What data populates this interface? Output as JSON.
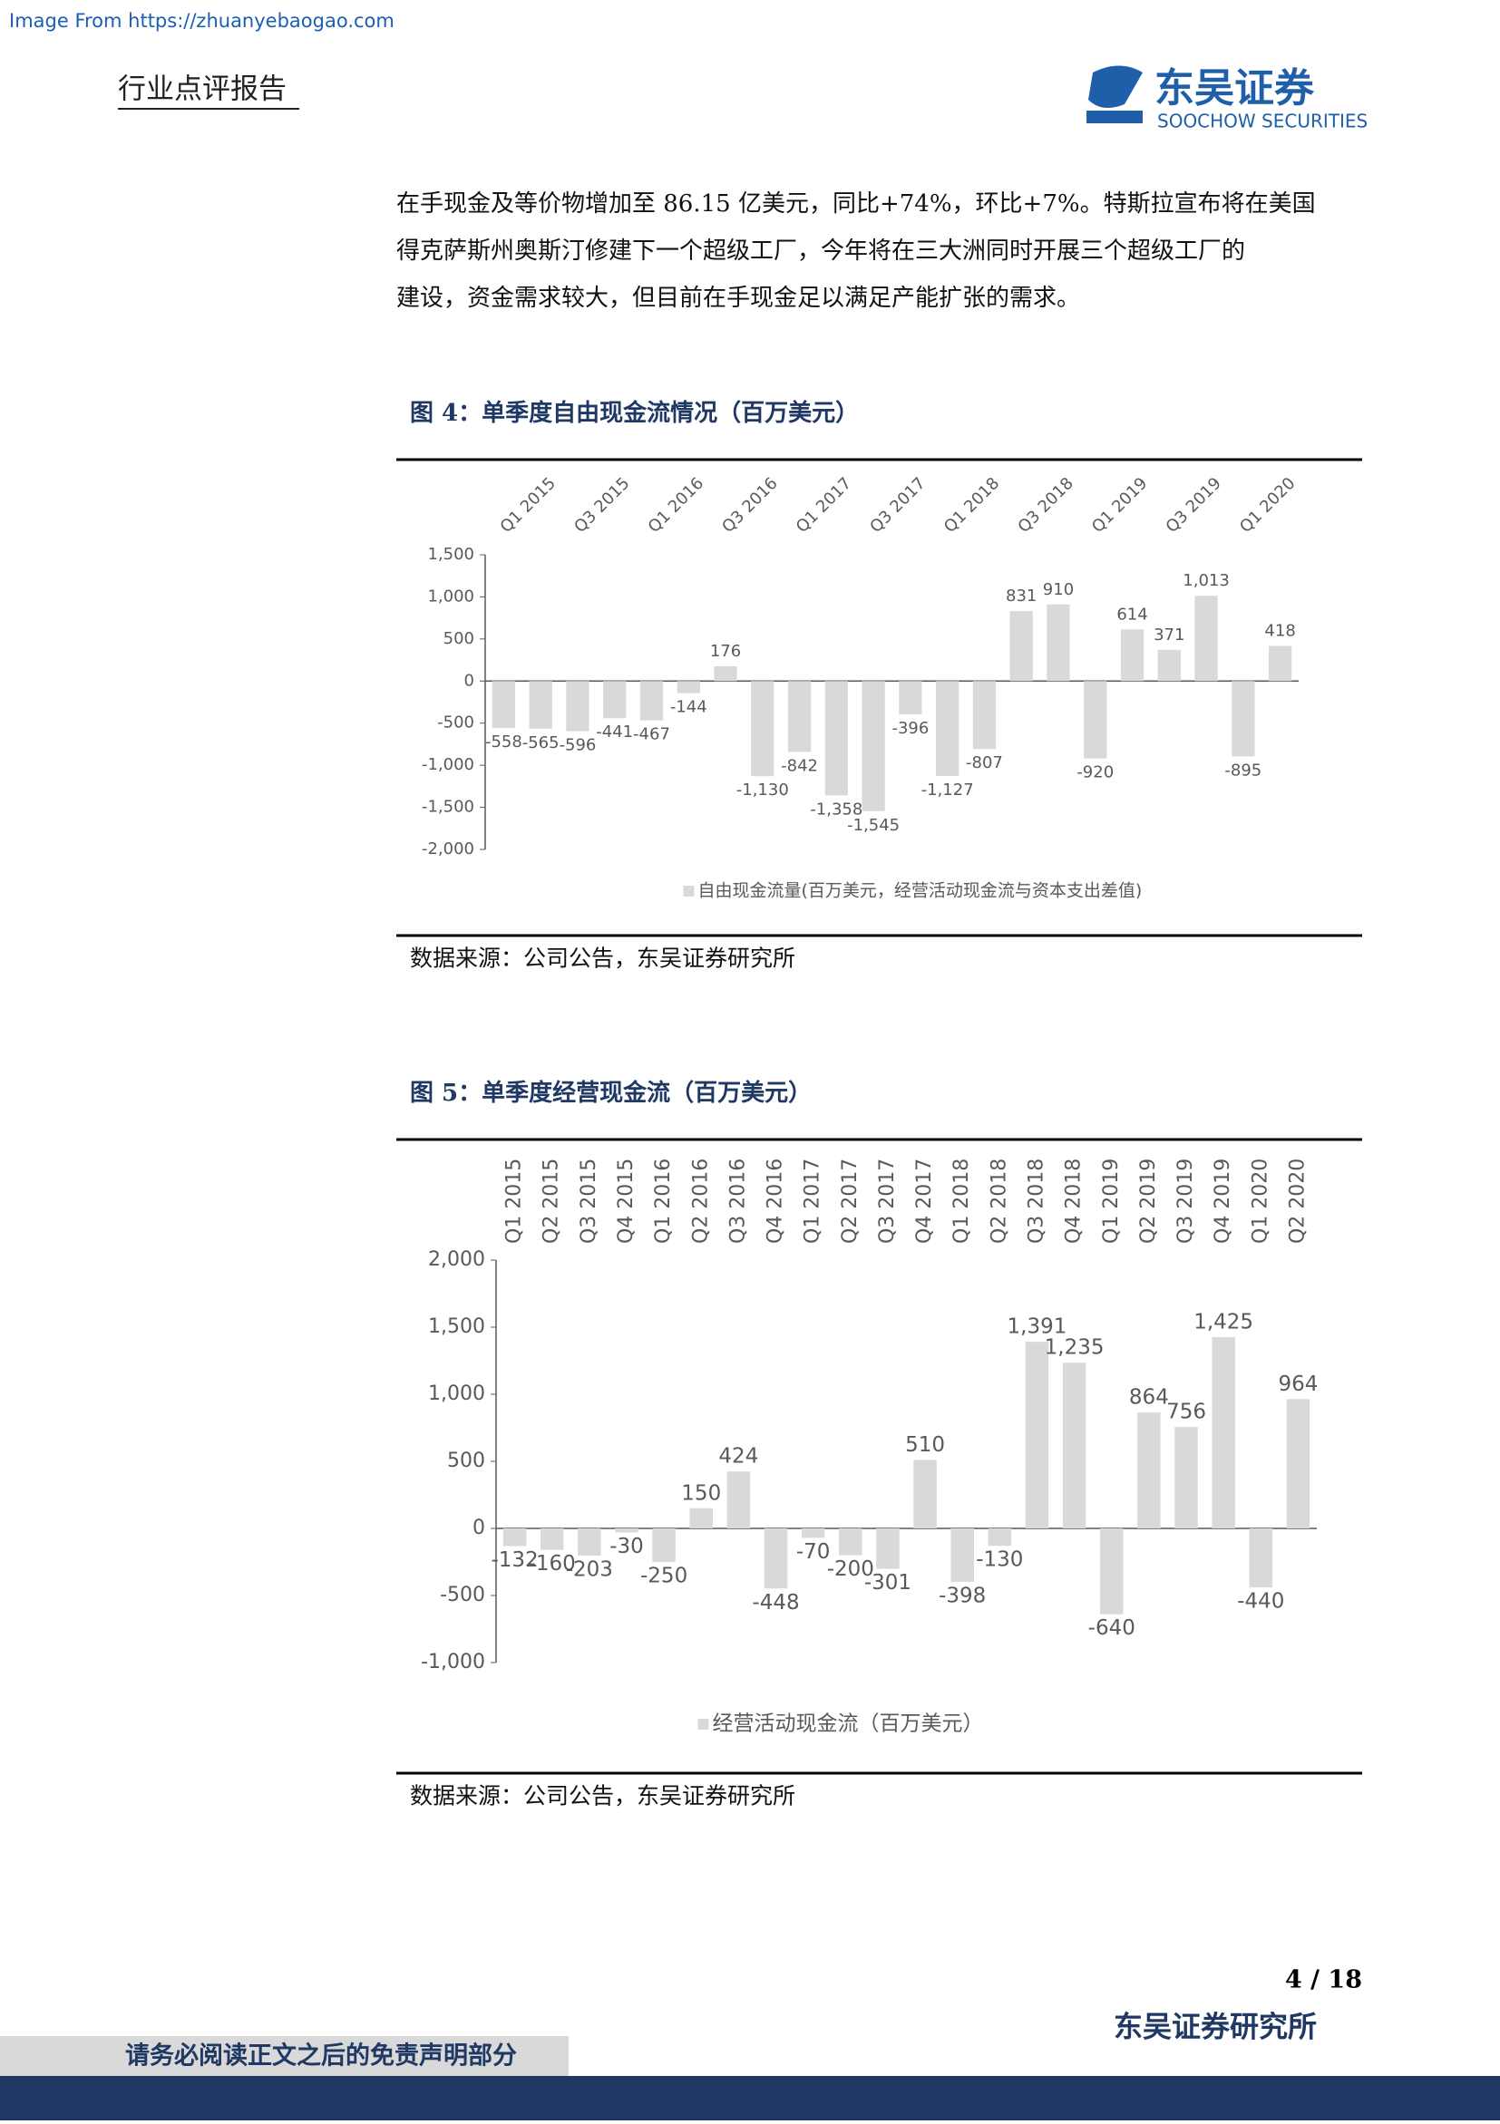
{
  "header": {
    "source": "Image From https://zhuanyebaogao.com",
    "report_type": "行业点评报告",
    "logo_cn": "东吴证券",
    "logo_en": "SOOCHOW SECURITIES"
  },
  "paragraph": [
    "在手现金及等价物增加至 86.15 亿美元，同比+74%，环比+7%。特斯拉宣布将在美国",
    "得克萨斯州奥斯汀修建下一个超级工厂，今年将在三大洲同时开展三个超级工厂的",
    "建设，资金需求较大，但目前在手现金足以满足产能扩张的需求。"
  ],
  "figures": [
    {
      "title": "图 4：单季度自由现金流情况（百万美元）",
      "source": "数据来源：公司公告，东吴证券研究所"
    },
    {
      "title": "图 5：单季度经营现金流（百万美元）",
      "source": "数据来源：公司公告，东吴证券研究所"
    }
  ],
  "chart_data": [
    {
      "type": "bar",
      "categories": [
        "Q1 2015",
        null,
        "Q3 2015",
        null,
        "Q1 2016",
        null,
        "Q3 2016",
        null,
        "Q1 2017",
        null,
        "Q3 2017",
        null,
        "Q1 2018",
        null,
        "Q3 2018",
        null,
        "Q1 2019",
        null,
        "Q3 2019",
        null,
        "Q1 2020",
        null
      ],
      "series": [
        {
          "name": "自由现金流量(百万美元，经营活动现金流与资本支出差值)",
          "color": "#d9d9d9",
          "values": [
            -558,
            -565,
            -596,
            -441,
            -467,
            -144,
            176,
            -1130,
            -842,
            -1358,
            -1545,
            -396,
            -1127,
            -807,
            831,
            910,
            -920,
            614,
            371,
            1013,
            -895,
            418
          ],
          "value_labels": [
            "-558",
            "-565",
            "-596",
            "-441",
            "-467",
            "-144",
            "176",
            "-1,130",
            "-842",
            "-1,358",
            "-1,545",
            "-396",
            "-1,127",
            "-807",
            "831",
            "910",
            "-920",
            "614",
            "371",
            "1,013",
            "-895",
            "418"
          ]
        }
      ],
      "ylim": [
        -2000,
        1500
      ],
      "yticks": [
        {
          "value": 1500,
          "label": "1,500"
        },
        {
          "value": 1000,
          "label": "1,000"
        },
        500,
        0,
        -500,
        {
          "value": -1000,
          "label": "-1,000"
        },
        {
          "value": -1500,
          "label": "-1,500"
        },
        {
          "value": -2000,
          "label": "-2,000"
        }
      ],
      "legend": "bottom"
    },
    {
      "type": "bar",
      "categories": [
        "Q1 2015",
        "Q2 2015",
        "Q3 2015",
        "Q4 2015",
        "Q1 2016",
        "Q2 2016",
        "Q3 2016",
        "Q4 2016",
        "Q1 2017",
        "Q2 2017",
        "Q3 2017",
        "Q4 2017",
        "Q1 2018",
        "Q2 2018",
        "Q3 2018",
        "Q4 2018",
        "Q1 2019",
        "Q2 2019",
        "Q3 2019",
        "Q4 2019",
        "Q1 2020",
        "Q2 2020"
      ],
      "series": [
        {
          "name": "经营活动现金流（百万美元）",
          "color": "#d9d9d9",
          "values": [
            -132,
            -160,
            -203,
            -30,
            -250,
            150,
            424,
            -448,
            -70,
            -200,
            -301,
            510,
            -398,
            -130,
            1391,
            1235,
            -640,
            864,
            756,
            1425,
            -440,
            964
          ],
          "value_labels": [
            "-132",
            "-160",
            "-203",
            "-30",
            "-250",
            "150",
            "424",
            "-448",
            "-70",
            "-200",
            "-301",
            "510",
            "-398",
            "-130",
            "1,391",
            "1,235",
            "-640",
            "864",
            "756",
            "1,425",
            "-440",
            "964"
          ]
        }
      ],
      "ylim": [
        -1000,
        2000
      ],
      "yticks": [
        {
          "value": 2000,
          "label": "2,000"
        },
        {
          "value": 1500,
          "label": "1,500"
        },
        {
          "value": 1000,
          "label": "1,000"
        },
        500,
        0,
        -500,
        {
          "value": -1000,
          "label": "-1,000"
        }
      ],
      "legend": "bottom"
    }
  ],
  "footer": {
    "page": "4 / 18",
    "org": "东吴证券研究所",
    "disclaimer": "请务必阅读正文之后的免责声明部分"
  }
}
